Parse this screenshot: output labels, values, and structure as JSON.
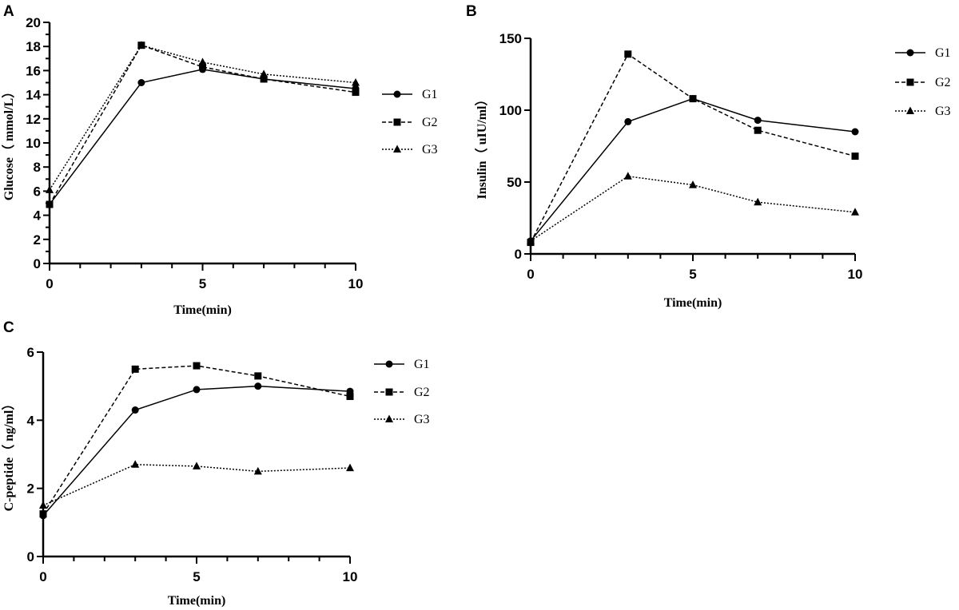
{
  "chart_data": [
    {
      "panel": "A",
      "type": "line",
      "xlabel": "Time(min)",
      "ylabel": "Glucose（ mmol/L）",
      "xlim": [
        0,
        10
      ],
      "ylim": [
        0,
        20
      ],
      "xticks": [
        0,
        5,
        10
      ],
      "yticks": [
        0,
        2,
        4,
        6,
        8,
        10,
        12,
        14,
        16,
        18,
        20
      ],
      "x": [
        0,
        3,
        5,
        7,
        10
      ],
      "legend": "right",
      "grid": false,
      "series": [
        {
          "name": "G1",
          "marker": "circle",
          "line": "solid",
          "values": [
            4.9,
            15.0,
            16.1,
            15.3,
            14.5
          ]
        },
        {
          "name": "G2",
          "marker": "square",
          "line": "dashed",
          "values": [
            4.9,
            18.1,
            16.3,
            15.3,
            14.2
          ]
        },
        {
          "name": "G3",
          "marker": "triangle",
          "line": "dotted",
          "values": [
            6.1,
            18.1,
            16.7,
            15.7,
            15.0
          ]
        }
      ]
    },
    {
      "panel": "B",
      "type": "line",
      "xlabel": "Time(min)",
      "ylabel": "Insulin（ uIU/ml）",
      "xlim": [
        0,
        10
      ],
      "ylim": [
        0,
        150
      ],
      "xticks": [
        0,
        5,
        10
      ],
      "yticks": [
        0,
        50,
        100,
        150
      ],
      "x": [
        0,
        3,
        5,
        7,
        10
      ],
      "legend": "right",
      "grid": false,
      "series": [
        {
          "name": "G1",
          "marker": "circle",
          "line": "solid",
          "values": [
            9,
            92,
            108,
            93,
            85
          ]
        },
        {
          "name": "G2",
          "marker": "square",
          "line": "dashed",
          "values": [
            8,
            139,
            108,
            86,
            68
          ]
        },
        {
          "name": "G3",
          "marker": "triangle",
          "line": "dotted",
          "values": [
            9,
            54,
            48,
            36,
            29
          ]
        }
      ]
    },
    {
      "panel": "C",
      "type": "line",
      "xlabel": "Time(min)",
      "ylabel": "C-peptide（ ng/ml）",
      "xlim": [
        0,
        10
      ],
      "ylim": [
        0,
        6
      ],
      "xticks": [
        0,
        5,
        10
      ],
      "yticks": [
        0,
        2,
        4,
        6
      ],
      "x": [
        0,
        3,
        5,
        7,
        10
      ],
      "legend": "right",
      "grid": false,
      "series": [
        {
          "name": "G1",
          "marker": "circle",
          "line": "solid",
          "values": [
            1.2,
            4.3,
            4.9,
            5.0,
            4.85
          ]
        },
        {
          "name": "G2",
          "marker": "square",
          "line": "dashed",
          "values": [
            1.25,
            5.5,
            5.6,
            5.3,
            4.7
          ]
        },
        {
          "name": "G3",
          "marker": "triangle",
          "line": "dotted",
          "values": [
            1.5,
            2.7,
            2.65,
            2.5,
            2.6
          ]
        }
      ]
    }
  ]
}
